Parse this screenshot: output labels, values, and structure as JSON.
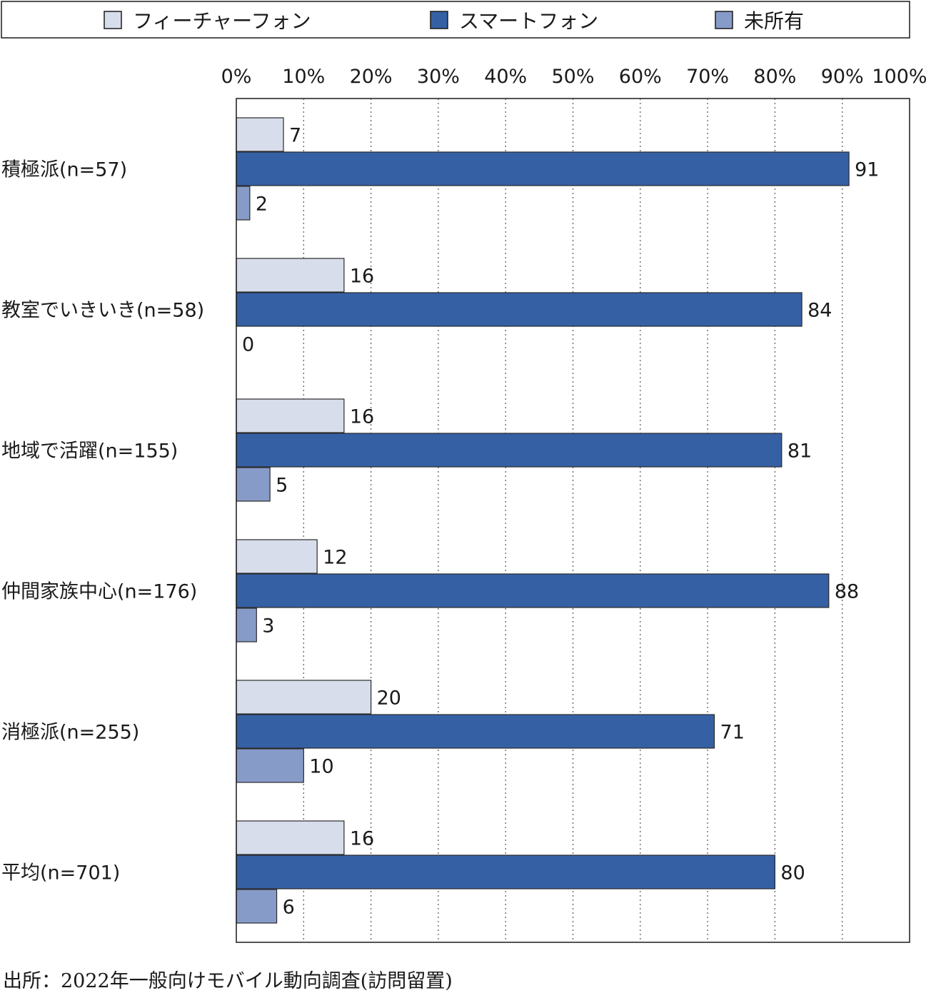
{
  "chart_data": {
    "type": "bar",
    "orientation": "horizontal",
    "categories": [
      "積極派(n=57)",
      "教室でいきいき(n=58)",
      "地域で活躍(n=155)",
      "仲間家族中心(n=176)",
      "消極派(n=255)",
      "平均(n=701)"
    ],
    "series": [
      {
        "name": "フィーチャーフォン",
        "color": "#d7ddeb",
        "values": [
          7,
          16,
          16,
          12,
          20,
          16
        ]
      },
      {
        "name": "スマートフォン",
        "color": "#3560a4",
        "values": [
          91,
          84,
          81,
          88,
          71,
          80
        ]
      },
      {
        "name": "未所有",
        "color": "#879bc8",
        "values": [
          2,
          0,
          5,
          3,
          10,
          6
        ]
      }
    ],
    "x_ticks": [
      "0%",
      "10%",
      "20%",
      "30%",
      "40%",
      "50%",
      "60%",
      "70%",
      "80%",
      "90%",
      "100%"
    ],
    "xlim": [
      0,
      100
    ],
    "grid": "vertical-dotted",
    "legend_position": "top"
  },
  "source": "出所：2022年一般向けモバイル動向調査(訪問留置)"
}
